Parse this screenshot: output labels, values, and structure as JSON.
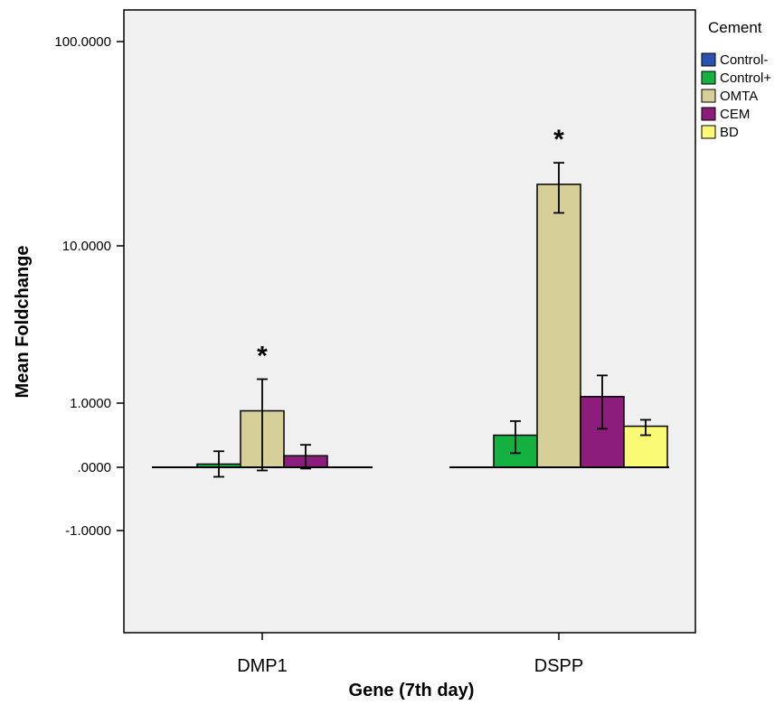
{
  "chart_data": {
    "type": "bar",
    "xlabel": "Gene (7th day)",
    "ylabel": "Mean Foldchange",
    "y_scale": "log-like (SPSS)",
    "y_ticks": [
      "100.0000",
      "10.0000",
      "1.0000",
      ".0000",
      "-1.0000"
    ],
    "categories": [
      "DMP1",
      "DSPP"
    ],
    "legend": {
      "title": "Cement",
      "position": "right"
    },
    "grid": false,
    "series": [
      {
        "name": "Control-",
        "color": "#2a52b0",
        "values": [
          0,
          0
        ],
        "err_low": [
          0,
          0
        ],
        "err_high": [
          0,
          0
        ]
      },
      {
        "name": "Control+",
        "color": "#14b040",
        "values": [
          0.05,
          0.5
        ],
        "err_low": [
          -0.15,
          0.22
        ],
        "err_high": [
          0.25,
          0.72
        ]
      },
      {
        "name": "OMTA",
        "color": "#d6cf97",
        "values": [
          0.88,
          20
        ],
        "err_low": [
          -0.05,
          14.5
        ],
        "err_high": [
          1.42,
          25.5
        ]
      },
      {
        "name": "CEM",
        "color": "#8c1d7d",
        "values": [
          0.18,
          1.1
        ],
        "err_low": [
          -0.02,
          0.6
        ],
        "err_high": [
          0.35,
          1.5
        ]
      },
      {
        "name": "BD",
        "color": "#fbfa74",
        "values": [
          0,
          0.64
        ],
        "err_low": [
          0,
          0.5
        ],
        "err_high": [
          0,
          0.74
        ]
      }
    ],
    "annotations": [
      {
        "category": "DMP1",
        "series": "OMTA",
        "text": "*"
      },
      {
        "category": "DSPP",
        "series": "OMTA",
        "text": "*"
      }
    ]
  }
}
